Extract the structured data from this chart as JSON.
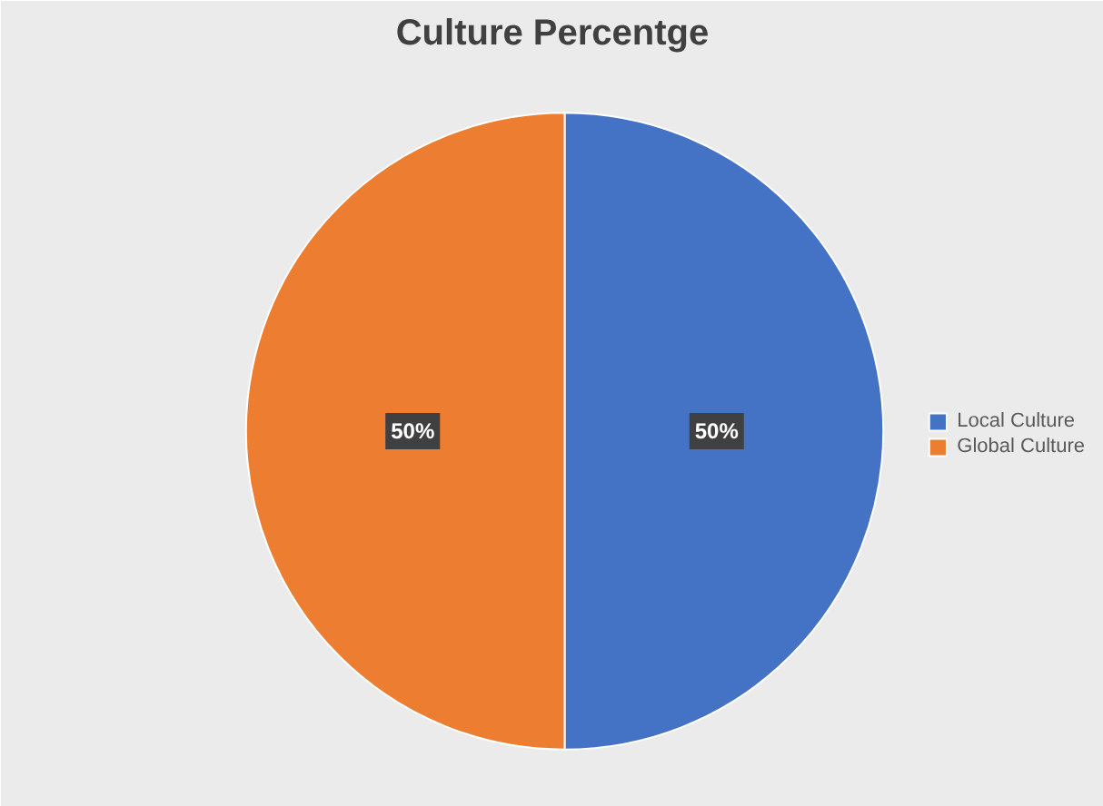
{
  "chart_data": {
    "type": "pie",
    "title": "Culture Percentge",
    "categories": [
      "Local Culture",
      "Global Culture"
    ],
    "values": [
      50,
      50
    ],
    "colors": [
      "#4472c4",
      "#ed7d31"
    ],
    "value_labels": [
      "50%",
      "50%"
    ],
    "legend": "right"
  }
}
